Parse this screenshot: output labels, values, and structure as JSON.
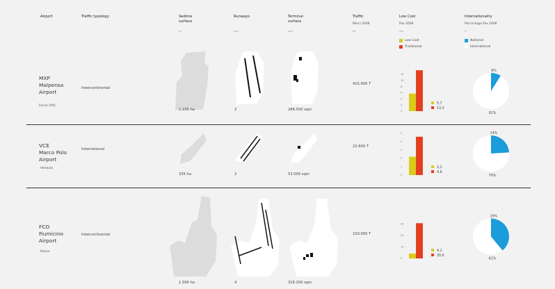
{
  "headers": {
    "airport": "Airport",
    "typology": "Traffic typology",
    "sedime": "Sedime\nsurface",
    "sedime_unit": "ha",
    "runways": "Runways",
    "runways_unit": "num",
    "terminal": "Terminal\nsurface",
    "terminal_unit": "sqm",
    "traffic": "Traffic",
    "traffic_sub": "Merci 2008",
    "traffic_unit": "ton",
    "lowcost": "Low Cost",
    "lowcost_sub": "Pax 2008",
    "lowcost_unit": "mln",
    "intl": "Internationality",
    "intl_sub": "Percentage Pax 2008",
    "intl_unit": "%"
  },
  "legend": {
    "lowcost_label": "Low Cost",
    "traditional_label": "Tradizional",
    "national_label": "National",
    "international_label": "International"
  },
  "colors": {
    "lowcost": "#d9cb1c",
    "traditional": "#e2401f",
    "national": "#1b9cdb",
    "international": "#ffffff"
  },
  "airports": [
    {
      "code": "MXP",
      "name1": "Malpensa",
      "name2": "Airport",
      "city": "Ferno (VA)",
      "typology": "Intercontinental",
      "sedime": "1.235 ha",
      "runways": "2",
      "terminal": "288.500 sqm",
      "traffic": "415.900 T"
    },
    {
      "code": "VCE",
      "name1": "Marco Polo",
      "name2": "Airport",
      "city": "Venezia",
      "typology": "International",
      "sedime": "335 ha",
      "runways": "2",
      "terminal": "53.000 sqm",
      "traffic": "22.600 T"
    },
    {
      "code": "FCO",
      "name1": "Fiumicino",
      "name2": "Airport",
      "city": "Roma",
      "typology": "Intercontinental",
      "sedime": "1.590 ha",
      "runways": "4",
      "terminal": "318.200 sqm",
      "traffic": "150.000 T"
    }
  ],
  "chart_data": [
    {
      "type": "bar",
      "title": "MXP Low Cost",
      "categories": [
        "Low Cost",
        "Tradizional"
      ],
      "values": [
        5.7,
        13.3
      ],
      "value_labels": [
        "5,7",
        "13,3"
      ],
      "ticks": [
        "0",
        "2",
        "4",
        "6",
        "8",
        "10",
        "12"
      ],
      "ylim": [
        0,
        14
      ]
    },
    {
      "type": "bar",
      "title": "VCE Low Cost",
      "categories": [
        "Low Cost",
        "Tradizional"
      ],
      "values": [
        2.2,
        4.6
      ],
      "value_labels": [
        "2,2",
        "4,6"
      ],
      "ticks": [
        "0",
        "1",
        "2",
        "3",
        "4",
        "5"
      ],
      "ylim": [
        0,
        5
      ]
    },
    {
      "type": "bar",
      "title": "FCO Low Cost",
      "categories": [
        "Low Cost",
        "Tradizional"
      ],
      "values": [
        4.2,
        30.6
      ],
      "value_labels": [
        "4,2",
        "30,6"
      ],
      "ticks": [
        "0",
        "10",
        "20",
        "30"
      ],
      "ylim": [
        0,
        35
      ]
    },
    {
      "type": "pie",
      "title": "MXP Internationality",
      "categories": [
        "National",
        "International"
      ],
      "values": [
        9,
        91
      ],
      "value_labels": [
        "9%",
        "91%"
      ]
    },
    {
      "type": "pie",
      "title": "VCE Internationality",
      "categories": [
        "National",
        "International"
      ],
      "values": [
        24,
        76
      ],
      "value_labels": [
        "24%",
        "76%"
      ]
    },
    {
      "type": "pie",
      "title": "FCO Internationality",
      "categories": [
        "National",
        "International"
      ],
      "values": [
        39,
        61
      ],
      "value_labels": [
        "39%",
        "61%"
      ]
    }
  ]
}
